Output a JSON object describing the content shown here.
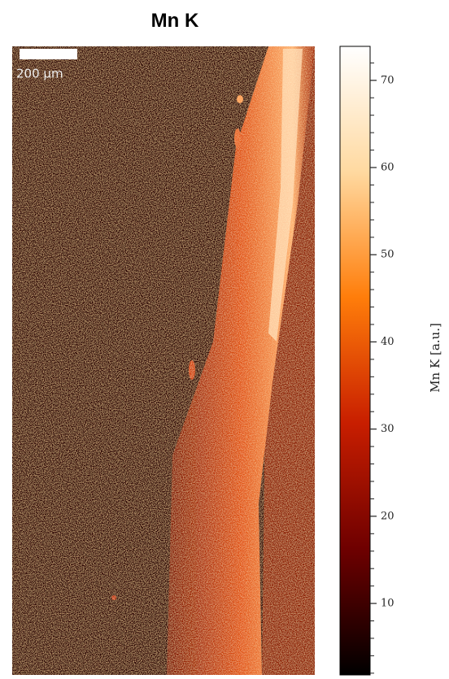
{
  "chart_data": {
    "type": "heatmap",
    "title": "Mn K",
    "scale_bar_label": "200 μm",
    "colorbar_label": "Mn K  [a.u.]",
    "colormap": [
      "#000000",
      "#6e0000",
      "#c81e00",
      "#ff7d0a",
      "#ffd9a0",
      "#ffffff"
    ],
    "ylim": [
      1.8,
      73.9
    ],
    "yticks": [
      10,
      20,
      30,
      40,
      50,
      60,
      70
    ],
    "minor_yticks": [
      2,
      4,
      6,
      8,
      12,
      14,
      16,
      18,
      22,
      24,
      26,
      28,
      32,
      34,
      36,
      38,
      42,
      44,
      46,
      48,
      52,
      54,
      56,
      58,
      62,
      64,
      66,
      68,
      72
    ]
  }
}
